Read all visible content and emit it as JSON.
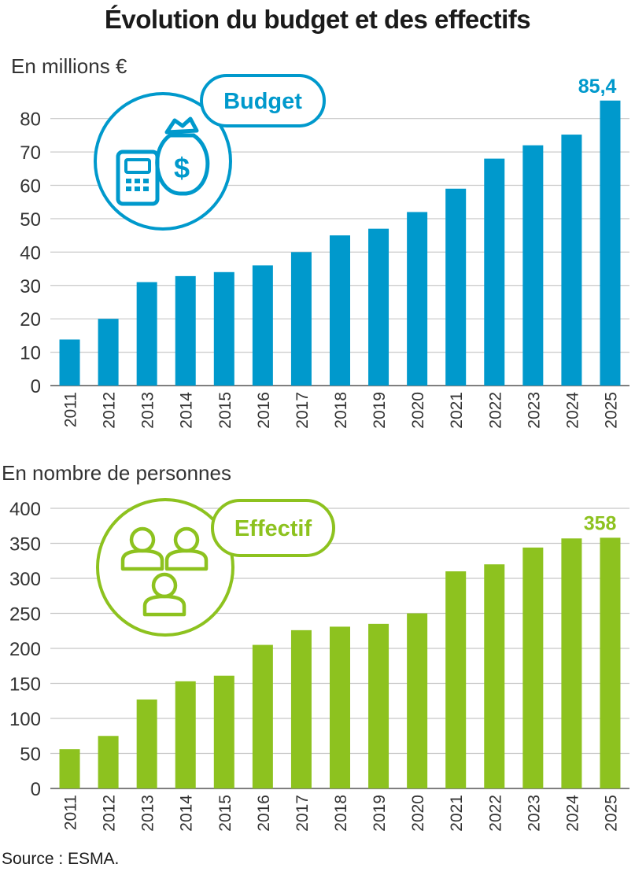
{
  "page_title": "Évolution du budget et des effectifs",
  "source": "Source : ESMA.",
  "colors": {
    "budget": "#0099CC",
    "effectif": "#8DC21F",
    "grid": "#C8C8C8",
    "axis": "#555555"
  },
  "chart_data": [
    {
      "type": "bar",
      "unit_label": "En millions €",
      "badge_label": "Budget",
      "badge_icon": "calculator-money-bag-icon",
      "categories": [
        "2011",
        "2012",
        "2013",
        "2014",
        "2015",
        "2016",
        "2017",
        "2018",
        "2019",
        "2020",
        "2021",
        "2022",
        "2023",
        "2024",
        "2025"
      ],
      "values": [
        13.8,
        20,
        31,
        32.8,
        34,
        36,
        40,
        45,
        47,
        52,
        59,
        68,
        72,
        75.2,
        85.4
      ],
      "value_label": "85,4",
      "ylim": [
        0,
        85
      ],
      "yticks": [
        0,
        10,
        20,
        30,
        40,
        50,
        60,
        70,
        80
      ],
      "grid": true
    },
    {
      "type": "bar",
      "unit_label": "En nombre de personnes",
      "badge_label": "Effectif",
      "badge_icon": "people-group-icon",
      "categories": [
        "2011",
        "2012",
        "2013",
        "2014",
        "2015",
        "2016",
        "2017",
        "2018",
        "2019",
        "2020",
        "2021",
        "2022",
        "2023",
        "2024",
        "2025"
      ],
      "values": [
        56,
        75,
        127,
        153,
        161,
        205,
        226,
        231,
        235,
        250,
        310,
        320,
        344,
        357,
        358
      ],
      "value_label": "358",
      "ylim": [
        0,
        400
      ],
      "yticks": [
        0,
        50,
        100,
        150,
        200,
        250,
        300,
        350,
        400
      ],
      "grid": true
    }
  ]
}
